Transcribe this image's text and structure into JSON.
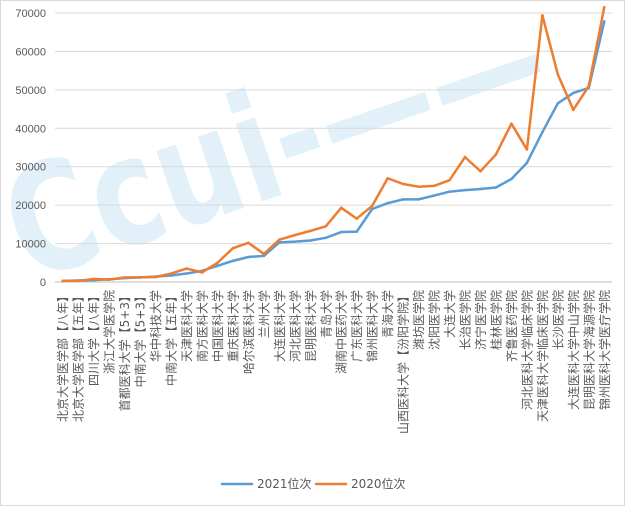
{
  "watermark": "Ccui-——",
  "chart_data": {
    "type": "line",
    "categories": [
      "北京大学医学部【八年】",
      "北京大学医学部【五年】",
      "四川大学【八年】",
      "浙江大学医学院",
      "首都医科大学【5+3】",
      "中南大学【5+3】",
      "华中科技大学",
      "中南大学【五年】",
      "天津医科大学",
      "南方医科大学",
      "中国医科大学",
      "重庆医科大学",
      "哈尔滨医科大学",
      "兰州大学",
      "大连医科大学",
      "河北医科大学",
      "昆明医科大学",
      "青岛大学",
      "湖南中医药大学",
      "广东医科大学",
      "锦州医科大学",
      "青海大学",
      "山西医科大学【汾阳学院】",
      "潍坊医学院",
      "沈阳医学院",
      "大连大学",
      "长治医学院",
      "济宁医学院",
      "桂林医学院",
      "齐鲁医药学院",
      "河北医科大学临床学院",
      "天津医科大学临床医学院",
      "长沙医学院",
      "大连医科大学中山学院",
      "昆明医科大学海源学院",
      "锦州医科大学医疗学院"
    ],
    "series": [
      {
        "name": "2021位次",
        "color": "#5B9BD5",
        "values": [
          300,
          400,
          500,
          700,
          1000,
          1200,
          1400,
          1700,
          2200,
          2900,
          4200,
          5500,
          6500,
          6800,
          10300,
          10500,
          10800,
          11500,
          13000,
          13100,
          19000,
          20500,
          21500,
          21500,
          22500,
          23500,
          23900,
          24200,
          24600,
          26800,
          31000,
          39000,
          46500,
          49200,
          50500,
          67800
        ]
      },
      {
        "name": "2020位次",
        "color": "#ED7D31",
        "values": [
          300,
          300,
          800,
          600,
          1200,
          1200,
          1300,
          2200,
          3500,
          2500,
          5000,
          8800,
          10200,
          7300,
          11000,
          12200,
          13300,
          14500,
          19300,
          16500,
          19800,
          27000,
          25500,
          24800,
          25000,
          26500,
          32500,
          28800,
          33200,
          41200,
          34500,
          69400,
          54000,
          44800,
          51000,
          71500
        ]
      }
    ],
    "ylim": [
      0,
      70000
    ],
    "yticks": [
      0,
      10000,
      20000,
      30000,
      40000,
      50000,
      60000,
      70000
    ],
    "grid": true,
    "legend": "bottom"
  }
}
